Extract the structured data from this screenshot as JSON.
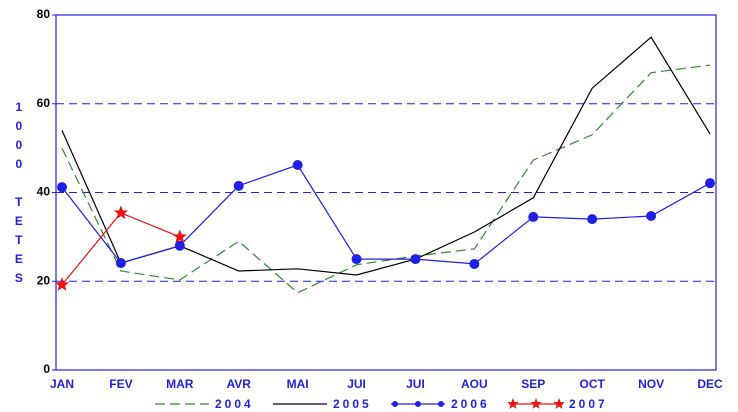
{
  "chart_data": {
    "type": "line",
    "y_label": "1000 TETES",
    "categories": [
      "JAN",
      "FEV",
      "MAR",
      "AVR",
      "MAI",
      "JUI",
      "JUI",
      "AOU",
      "SEP",
      "OCT",
      "NOV",
      "DEC"
    ],
    "ylim": [
      0,
      80
    ],
    "yticks": [
      0,
      20,
      40,
      60,
      80
    ],
    "grid": true,
    "series": [
      {
        "name": "2004",
        "color": "#2e8b2e",
        "style": "dashed",
        "marker": "none",
        "values": [
          50,
          22.3,
          20.3,
          29,
          17.4,
          23.7,
          25.7,
          27.3,
          47.3,
          53,
          67,
          68.7
        ]
      },
      {
        "name": "2005",
        "color": "#000000",
        "style": "solid",
        "marker": "none",
        "values": [
          54,
          24.1,
          28,
          22.3,
          22.8,
          21.4,
          25,
          31.1,
          38.8,
          63.5,
          75,
          53.2
        ]
      },
      {
        "name": "2006",
        "color": "#1f1fe6",
        "style": "solid",
        "marker": "circle",
        "values": [
          41.2,
          24.1,
          28,
          41.5,
          46.2,
          25,
          25,
          23.9,
          34.5,
          34,
          34.7,
          42.1
        ]
      },
      {
        "name": "2007",
        "color": "#ee1111",
        "style": "solid",
        "marker": "star",
        "values": [
          19.2,
          35.4,
          30,
          null,
          null,
          null,
          null,
          null,
          null,
          null,
          null,
          null
        ]
      }
    ]
  }
}
